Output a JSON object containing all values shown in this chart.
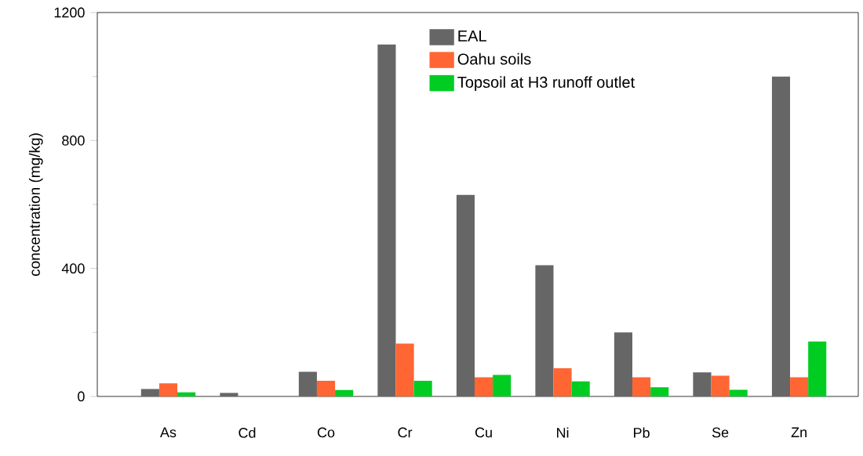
{
  "chart_data": {
    "type": "bar",
    "ylabel": "concentration (mg/kg)",
    "categories": [
      "As",
      "Cd",
      "Co",
      "Cr",
      "Cu",
      "Ni",
      "Pb",
      "Se",
      "Zn"
    ],
    "series": [
      {
        "name": "EAL",
        "color": "#666666",
        "values": [
          23,
          11,
          77,
          1100,
          630,
          410,
          200,
          75,
          1000
        ]
      },
      {
        "name": "Oahu soils",
        "color": "#ff6633",
        "values": [
          41,
          null,
          49,
          165,
          60,
          88,
          60,
          65,
          60
        ]
      },
      {
        "name": "Topsoil at H3 runoff outlet",
        "color": "#00cc22",
        "values": [
          13,
          null,
          20,
          49,
          67,
          47,
          29,
          21,
          172
        ]
      }
    ],
    "ylim": [
      0,
      1200
    ],
    "yticks": [
      0,
      400,
      800,
      1200
    ],
    "legend": "top right",
    "grid": false
  }
}
